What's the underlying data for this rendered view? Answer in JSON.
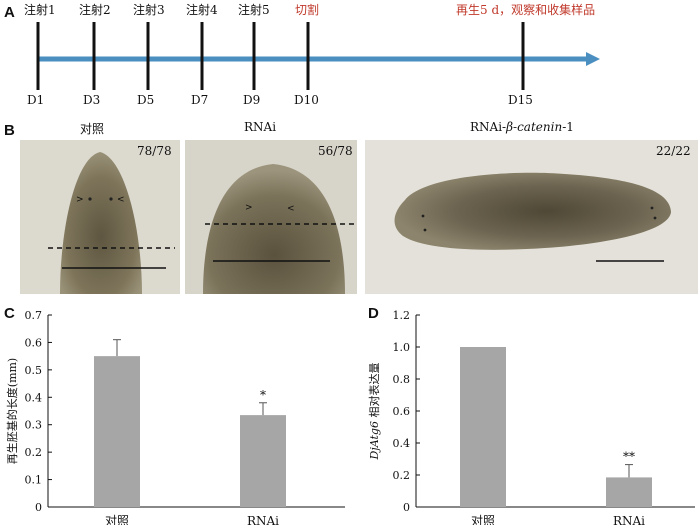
{
  "panel_a": {
    "label": "A",
    "injections": [
      "注射1",
      "注射2",
      "注射3",
      "注射4",
      "注射5"
    ],
    "cut_label": "切割",
    "regen_label": "再生5 d，观察和收集样品",
    "days": [
      "D1",
      "D3",
      "D5",
      "D7",
      "D9",
      "D10",
      "D15"
    ],
    "line_color": "#4a8fc0",
    "text_red": "#c0392b"
  },
  "panel_b": {
    "label": "B",
    "images": [
      {
        "title": "对照",
        "count": "78/78"
      },
      {
        "title": "RNAi",
        "count": "56/78"
      },
      {
        "title_prefix": "RNAi-",
        "title_italic": "β-catenin",
        "title_suffix": "-1",
        "count": "22/22"
      }
    ]
  },
  "chart_data": [
    {
      "type": "bar",
      "panel": "C",
      "categories": [
        "对照",
        "RNAi"
      ],
      "values": [
        0.55,
        0.335
      ],
      "errors": [
        0.06,
        0.045
      ],
      "significance": [
        "",
        "*"
      ],
      "ylabel": "再生胚基的长度(mm)",
      "ylim": [
        0,
        0.7
      ],
      "yticks": [
        "0",
        "0.1",
        "0.2",
        "0.3",
        "0.4",
        "0.5",
        "0.6",
        "0.7"
      ],
      "bar_color": "#a6a6a6"
    },
    {
      "type": "bar",
      "panel": "D",
      "categories": [
        "对照",
        "RNAi"
      ],
      "values": [
        1.0,
        0.185
      ],
      "errors": [
        0,
        0.08
      ],
      "significance": [
        "",
        "**"
      ],
      "ylabel_italic": "DjAtg6",
      "ylabel": " 相对表达量",
      "ylim": [
        0,
        1.2
      ],
      "yticks": [
        "0",
        "0.2",
        "0.4",
        "0.6",
        "0.8",
        "1.0",
        "1.2"
      ],
      "bar_color": "#a6a6a6"
    }
  ]
}
